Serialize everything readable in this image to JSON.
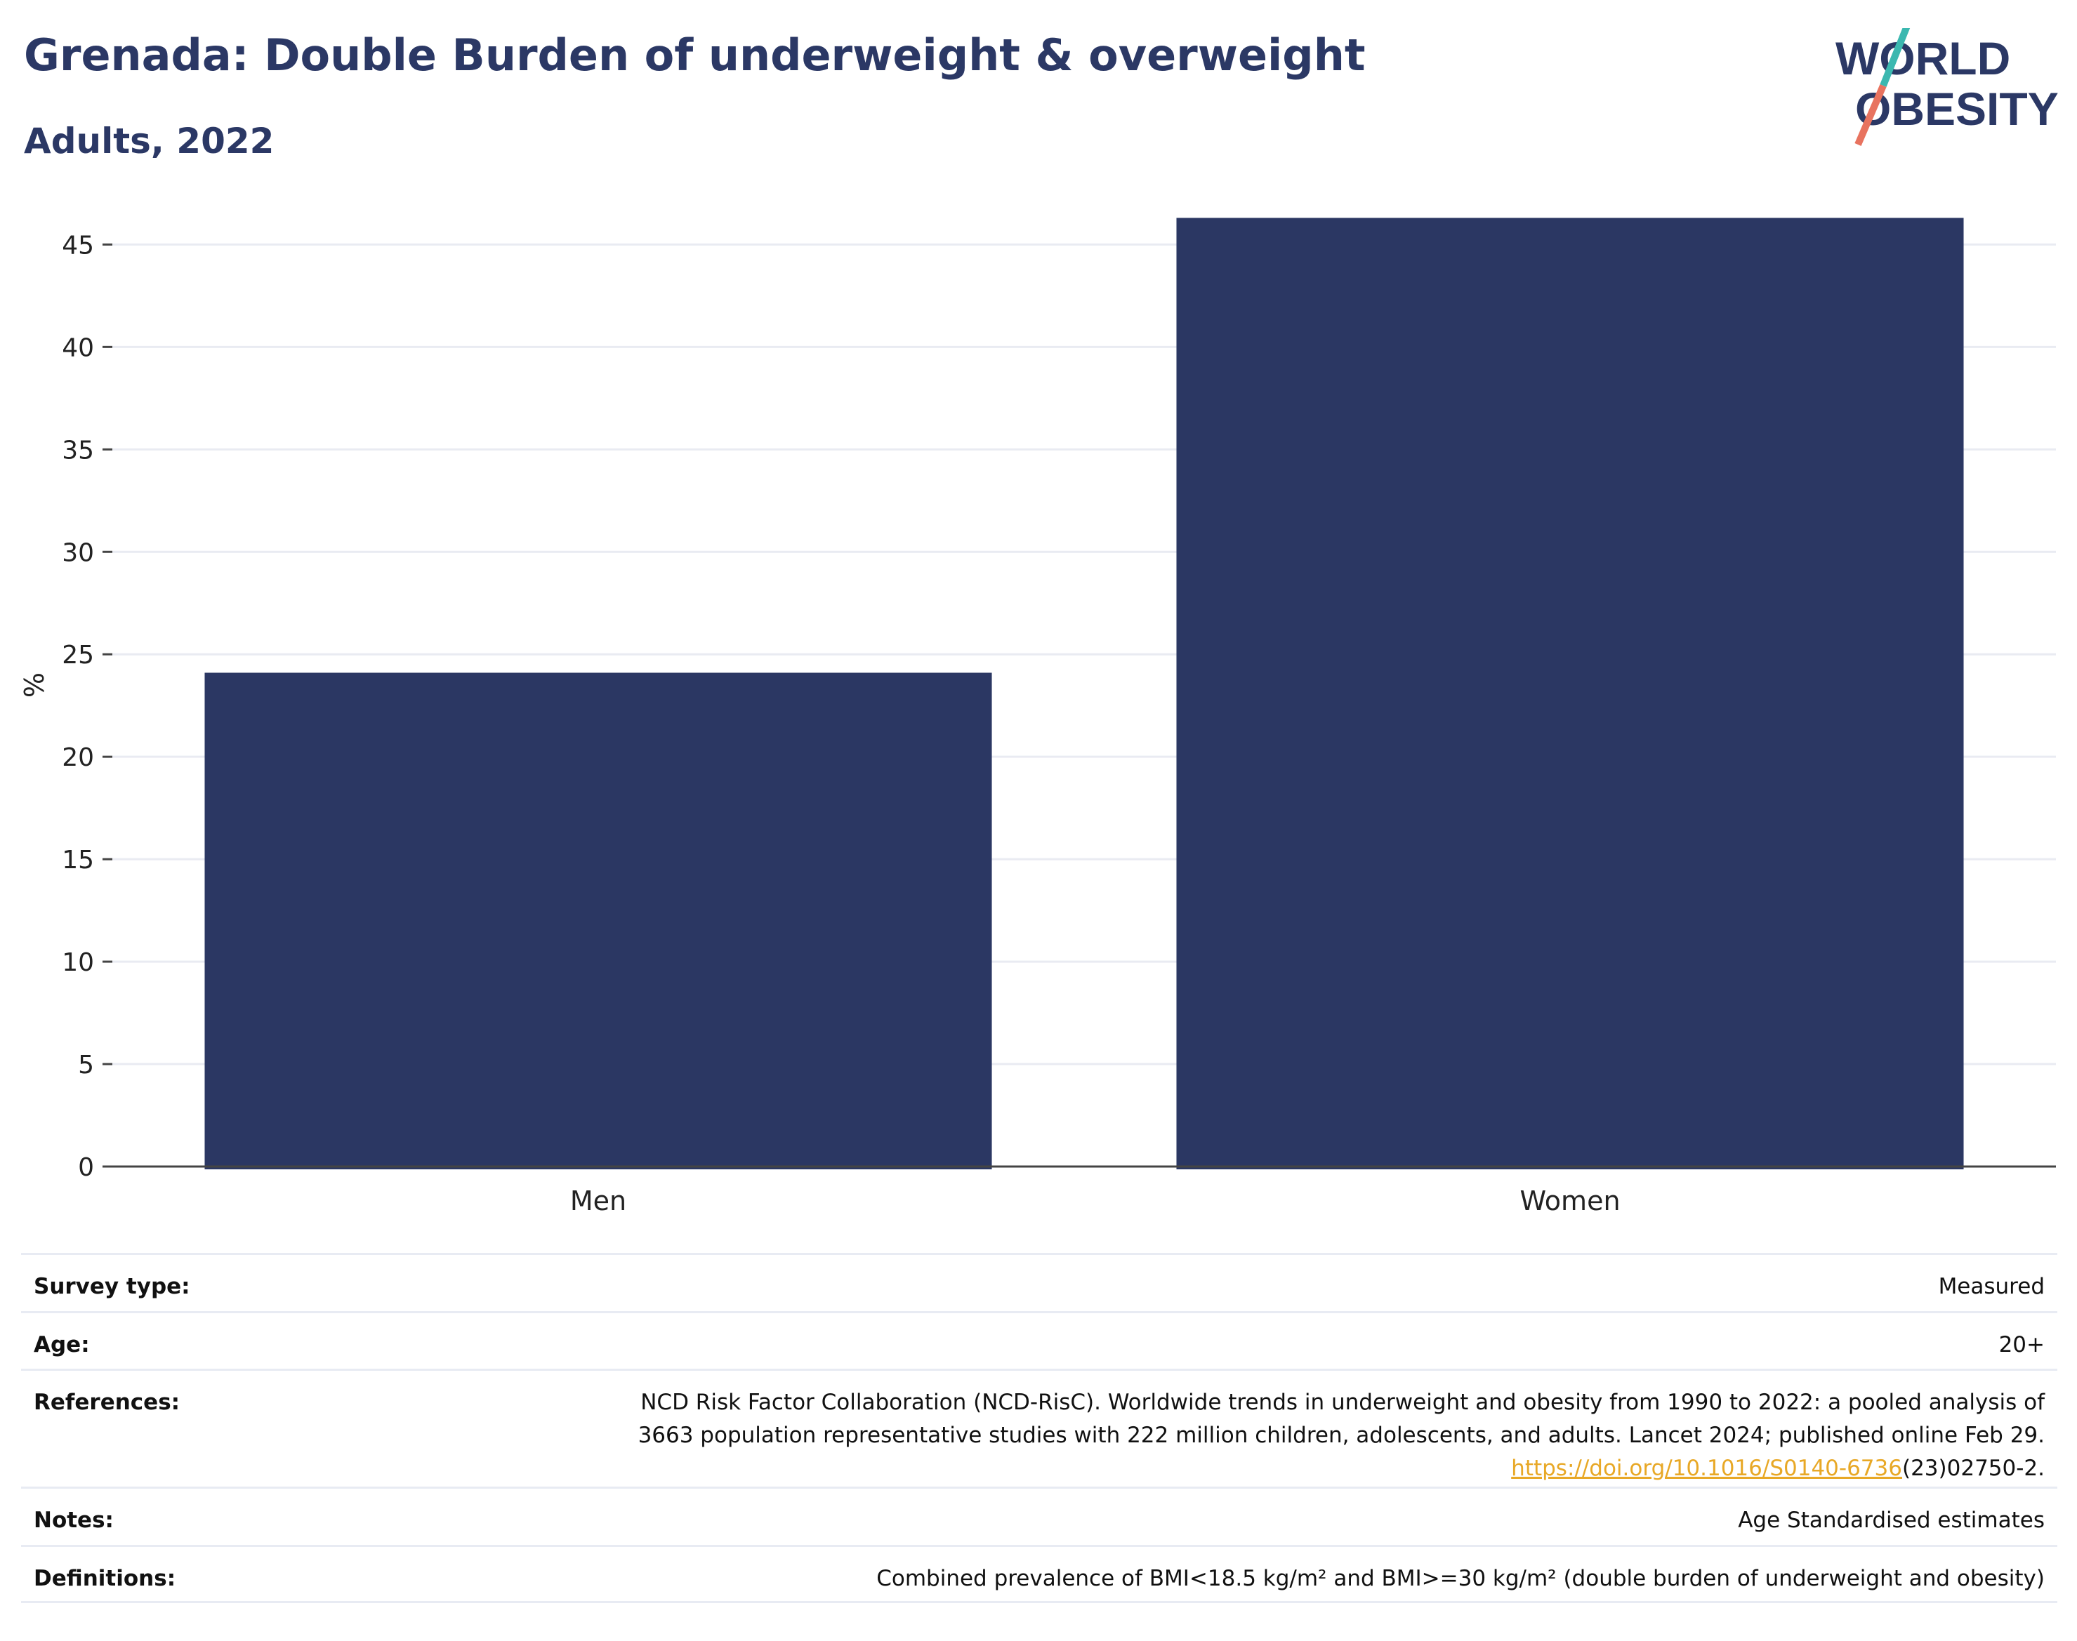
{
  "header": {
    "title": "Grenada: Double Burden of underweight & overweight",
    "subtitle": "Adults, 2022"
  },
  "logo": {
    "line1": "WORLD",
    "line2": "OBESITY",
    "colors": {
      "text": "#2b3865",
      "slash_top": "#3bb8b0",
      "slash_bottom": "#e8735f"
    }
  },
  "chart_data": {
    "type": "bar",
    "categories": [
      "Men",
      "Women"
    ],
    "values": [
      24.1,
      46.3
    ],
    "ylabel": "%",
    "xlabel": "",
    "ylim": [
      0,
      47
    ],
    "yticks": [
      0,
      5,
      10,
      15,
      20,
      25,
      30,
      35,
      40,
      45
    ],
    "grid": true,
    "bar_color": "#2b3763"
  },
  "meta": {
    "survey_type": {
      "label": "Survey type:",
      "value": "Measured"
    },
    "age": {
      "label": "Age:",
      "value": "20+"
    },
    "references": {
      "label": "References:",
      "line1": "NCD Risk Factor Collaboration (NCD-RisC). Worldwide trends in underweight and obesity from 1990 to 2022: a pooled analysis of",
      "line2": "3663 population representative studies with 222 million children, adolescents, and adults. Lancet 2024; published online Feb 29.",
      "link": "https://doi.org/10.1016/S0140-6736",
      "link_suffix": "(23)02750-2."
    },
    "notes": {
      "label": "Notes:",
      "value": "Age Standardised estimates"
    },
    "definitions": {
      "label": "Definitions:",
      "value": "Combined prevalence of BMI<18.5 kg/m² and BMI>=30 kg/m² (double burden of underweight and obesity)"
    }
  }
}
